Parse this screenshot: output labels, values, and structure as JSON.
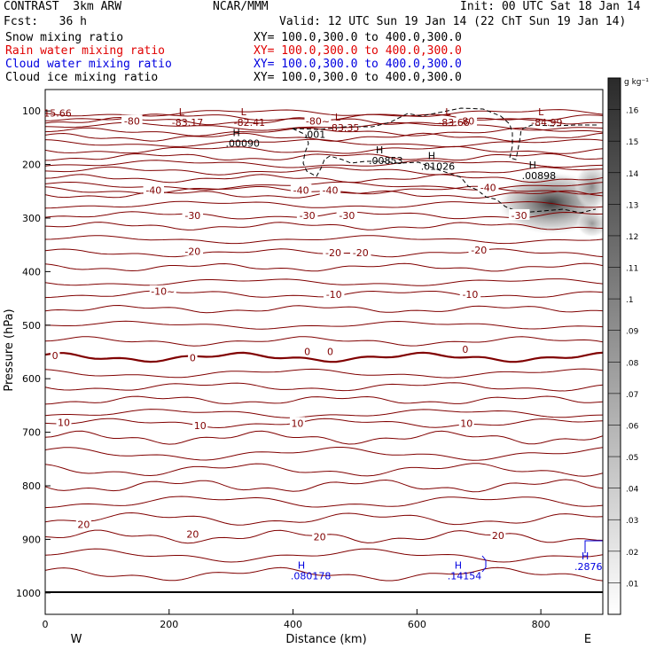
{
  "header": {
    "left_line1": "CONTRAST  3km ARW",
    "left_line2": "Fcst:   36 h",
    "center_line1": "NCAR/MMM",
    "right_line1": "Init: 00 UTC Sat 18 Jan 14",
    "right_line2": "Valid: 12 UTC Sun 19 Jan 14 (22 ChT Sun 19 Jan 14)",
    "fields": [
      {
        "name": "Snow mixing ratio",
        "xy": "XY= 100.0,300.0 to 400.0,300.0",
        "color": "#000000"
      },
      {
        "name": "Rain water mixing ratio",
        "xy": "XY= 100.0,300.0 to 400.0,300.0",
        "color": "#e00000"
      },
      {
        "name": "Cloud water mixing ratio",
        "xy": "XY= 100.0,300.0 to 400.0,300.0",
        "color": "#0000e0"
      },
      {
        "name": "Cloud ice mixing ratio",
        "xy": "XY= 100.0,300.0 to 400.0,300.0",
        "color": "#000000"
      }
    ]
  },
  "chart_data": {
    "type": "cross-section",
    "xlabel": "Distance (km)",
    "ylabel": "Pressure (hPa)",
    "xlim": [
      0,
      900
    ],
    "ylim": [
      1040,
      60
    ],
    "x_ticks": [
      0,
      200,
      400,
      600,
      800
    ],
    "y_ticks": [
      100,
      200,
      300,
      400,
      500,
      600,
      700,
      800,
      900,
      1000
    ],
    "endpoint_labels": {
      "left": "W",
      "right": "E"
    },
    "colorbar": {
      "unit": "g kg⁻¹",
      "levels": [
        ".01",
        ".02",
        ".03",
        ".04",
        ".05",
        ".06",
        ".07",
        ".08",
        ".09",
        ".1",
        ".11",
        ".12",
        ".13",
        ".14",
        ".15",
        ".16"
      ]
    },
    "temperature_line_color": "#800000",
    "temperature_labels": [
      {
        "text": "-80",
        "x": 140,
        "p": 119
      },
      {
        "text": "-80~",
        "x": 440,
        "p": 119
      },
      {
        "text": "-80",
        "x": 680,
        "p": 119
      },
      {
        "text": "-40",
        "x": 175,
        "p": 248
      },
      {
        "text": "-40",
        "x": 413,
        "p": 248
      },
      {
        "text": "-40",
        "x": 460,
        "p": 248
      },
      {
        "text": "-40",
        "x": 715,
        "p": 243
      },
      {
        "text": "-30",
        "x": 238,
        "p": 295
      },
      {
        "text": "-30",
        "x": 423,
        "p": 295
      },
      {
        "text": "-30",
        "x": 487,
        "p": 295
      },
      {
        "text": "-30",
        "x": 765,
        "p": 295
      },
      {
        "text": "-20",
        "x": 238,
        "p": 362
      },
      {
        "text": "-20",
        "x": 465,
        "p": 365
      },
      {
        "text": "-20",
        "x": 509,
        "p": 365
      },
      {
        "text": "-20",
        "x": 700,
        "p": 360
      },
      {
        "text": "-10~",
        "x": 190,
        "p": 437
      },
      {
        "text": "-10",
        "x": 466,
        "p": 442
      },
      {
        "text": "-10",
        "x": 686,
        "p": 442
      },
      {
        "text": "0",
        "x": 16,
        "p": 557
      },
      {
        "text": "0",
        "x": 238,
        "p": 561
      },
      {
        "text": "0",
        "x": 423,
        "p": 549
      },
      {
        "text": "0",
        "x": 460,
        "p": 549
      },
      {
        "text": "0",
        "x": 678,
        "p": 545
      },
      {
        "text": "10",
        "x": 30,
        "p": 682
      },
      {
        "text": "10",
        "x": 250,
        "p": 687
      },
      {
        "text": "10",
        "x": 407,
        "p": 683
      },
      {
        "text": "10",
        "x": 680,
        "p": 683
      },
      {
        "text": "20",
        "x": 62,
        "p": 872
      },
      {
        "text": "20",
        "x": 238,
        "p": 890
      },
      {
        "text": "20",
        "x": 443,
        "p": 895
      },
      {
        "text": "20",
        "x": 731,
        "p": 893
      }
    ],
    "extrema": [
      {
        "kind": "L",
        "value": "-83.17",
        "x": 230,
        "p": 113,
        "color": "#800000"
      },
      {
        "kind": "L",
        "value": "-82.41",
        "x": 330,
        "p": 113,
        "color": "#800000"
      },
      {
        "kind": "L",
        "value": "-83.35",
        "x": 482,
        "p": 123,
        "color": "#800000"
      },
      {
        "kind": "L",
        "value": "-83.66",
        "x": 660,
        "p": 113,
        "color": "#800000"
      },
      {
        "kind": "L",
        "value": "-84.99",
        "x": 810,
        "p": 113,
        "color": "#800000"
      },
      {
        "kind": "H",
        "value": ".00090",
        "x": 317,
        "p": 152,
        "color": "#000000"
      },
      {
        "kind": "H",
        "value": ".00853",
        "x": 548,
        "p": 184,
        "color": "#000000"
      },
      {
        "kind": "H",
        "value": ".01026",
        "x": 632,
        "p": 195,
        "color": "#000000"
      },
      {
        "kind": "H",
        "value": ".00898",
        "x": 795,
        "p": 212,
        "color": "#000000"
      },
      {
        "kind": "H",
        "value": ".080178",
        "x": 422,
        "p": 960,
        "color": "#0000e0"
      },
      {
        "kind": "H",
        "value": ".14154",
        "x": 675,
        "p": 960,
        "color": "#0000e0"
      },
      {
        "kind": "H",
        "value": ".2876",
        "x": 880,
        "p": 942,
        "color": "#0000e0"
      }
    ],
    "annotations": [
      {
        "text": "15.66",
        "x": 20,
        "p": 104,
        "color": "#800000"
      },
      {
        "text": ".001",
        "x": 435,
        "p": 144,
        "color": "#000000"
      }
    ],
    "cloud_ice_max": {
      "x": 823,
      "p": 281,
      "value": 0.13
    }
  }
}
